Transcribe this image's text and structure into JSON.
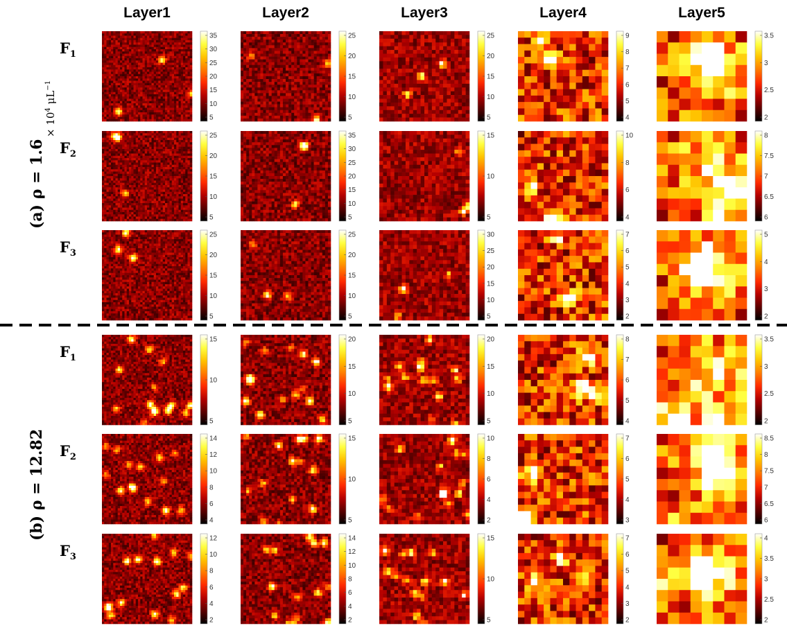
{
  "figure": {
    "columns": [
      "Layer1",
      "Layer2",
      "Layer3",
      "Layer4",
      "Layer5"
    ],
    "groups": [
      {
        "label_prefix": "(a) ",
        "label_math": "ρ = 1.6",
        "unit_prefix": "× 10",
        "unit_exp": "4",
        "unit_suffix": " μL",
        "unit_suffix_exp": "−1",
        "rows": [
          {
            "letter": "F",
            "sub": "1",
            "ticks": [
              [
                "35",
                "30",
                "25",
                "20",
                "15",
                "10",
                "5"
              ],
              [
                "25",
                "20",
                "15",
                "10",
                "5"
              ],
              [
                "25",
                "20",
                "15",
                "10",
                "5"
              ],
              [
                "9",
                "8",
                "7",
                "6",
                "5",
                "4"
              ],
              [
                "3.5",
                "3",
                "2.5",
                "2"
              ]
            ]
          },
          {
            "letter": "F",
            "sub": "2",
            "ticks": [
              [
                "25",
                "20",
                "15",
                "10",
                "5"
              ],
              [
                "35",
                "30",
                "25",
                "20",
                "15",
                "10",
                "5"
              ],
              [
                "15",
                "10",
                "5"
              ],
              [
                "10",
                "8",
                "6",
                "4"
              ],
              [
                "8",
                "7.5",
                "7",
                "6.5",
                "6"
              ]
            ]
          },
          {
            "letter": "F",
            "sub": "3",
            "ticks": [
              [
                "25",
                "20",
                "15",
                "10",
                "5"
              ],
              [
                "25",
                "20",
                "15",
                "10",
                "5"
              ],
              [
                "30",
                "25",
                "20",
                "15",
                "10",
                "5"
              ],
              [
                "7",
                "6",
                "5",
                "4",
                "3",
                "2"
              ],
              [
                "5",
                "4",
                "3",
                "2"
              ]
            ]
          }
        ]
      },
      {
        "label_prefix": "(b) ",
        "label_math": "ρ = 12.82",
        "rows": [
          {
            "letter": "F",
            "sub": "1",
            "ticks": [
              [
                "15",
                "10",
                "5"
              ],
              [
                "20",
                "15",
                "10",
                "5"
              ],
              [
                "20",
                "15",
                "10",
                "5"
              ],
              [
                "8",
                "7",
                "6",
                "5",
                "4"
              ],
              [
                "3.5",
                "3",
                "2.5",
                "2"
              ]
            ]
          },
          {
            "letter": "F",
            "sub": "2",
            "ticks": [
              [
                "14",
                "12",
                "10",
                "8",
                "6",
                "4"
              ],
              [
                "15",
                "10",
                "5"
              ],
              [
                "10",
                "8",
                "6",
                "4",
                "2"
              ],
              [
                "7",
                "6",
                "5",
                "4",
                "3"
              ],
              [
                "8.5",
                "8",
                "7.5",
                "7",
                "6.5",
                "6"
              ]
            ]
          },
          {
            "letter": "F",
            "sub": "3",
            "ticks": [
              [
                "12",
                "10",
                "8",
                "6",
                "4",
                "2"
              ],
              [
                "14",
                "12",
                "10",
                "8",
                "6",
                "4",
                "2"
              ],
              [
                "15",
                "10",
                "5"
              ],
              [
                "7",
                "6",
                "5",
                "4",
                "3",
                "2"
              ],
              [
                "4",
                "3.5",
                "3",
                "2.5",
                "2"
              ]
            ]
          }
        ]
      }
    ],
    "colormap": [
      "#000000",
      "#5a0000",
      "#b40000",
      "#ff2a00",
      "#ff7a00",
      "#ffc400",
      "#ffff40",
      "#ffffff"
    ],
    "grid_sizes": [
      40,
      32,
      24,
      14,
      8
    ],
    "divider": "dashed"
  }
}
